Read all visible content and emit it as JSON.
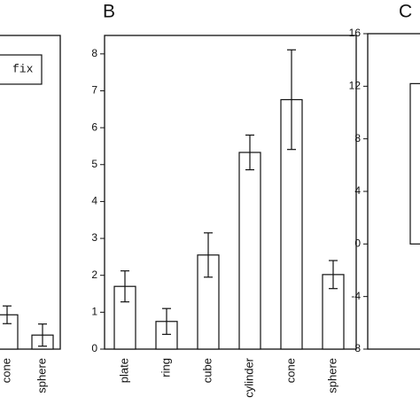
{
  "chart_data": [
    {
      "type": "bar",
      "categories": [
        "cone",
        "sphere"
      ],
      "series": [
        {
          "name": "fix",
          "color": "#ffffff",
          "values": [
            0.93,
            0.38
          ],
          "errors": [
            0.24,
            0.3
          ]
        }
      ],
      "ylim": [
        0,
        8.5
      ]
    },
    {
      "type": "bar",
      "title": "B",
      "categories": [
        "plate",
        "ring",
        "cube",
        "cylinder",
        "cone",
        "sphere"
      ],
      "values": [
        1.7,
        0.75,
        2.55,
        5.33,
        6.76,
        2.02
      ],
      "errors": [
        0.42,
        0.35,
        0.6,
        0.47,
        1.35,
        0.38
      ],
      "color": "#ffffff",
      "ylim": [
        0,
        8.5
      ],
      "yticks": [
        0,
        1,
        2,
        3,
        4,
        5,
        6,
        7,
        8
      ]
    },
    {
      "type": "bar",
      "title": "C",
      "categories": [
        null
      ],
      "values": [
        12.2
      ],
      "color": "#ffffff",
      "ylim": [
        -8,
        16
      ],
      "yticks": [
        -8,
        -4,
        0,
        4,
        8,
        12,
        16
      ]
    }
  ]
}
